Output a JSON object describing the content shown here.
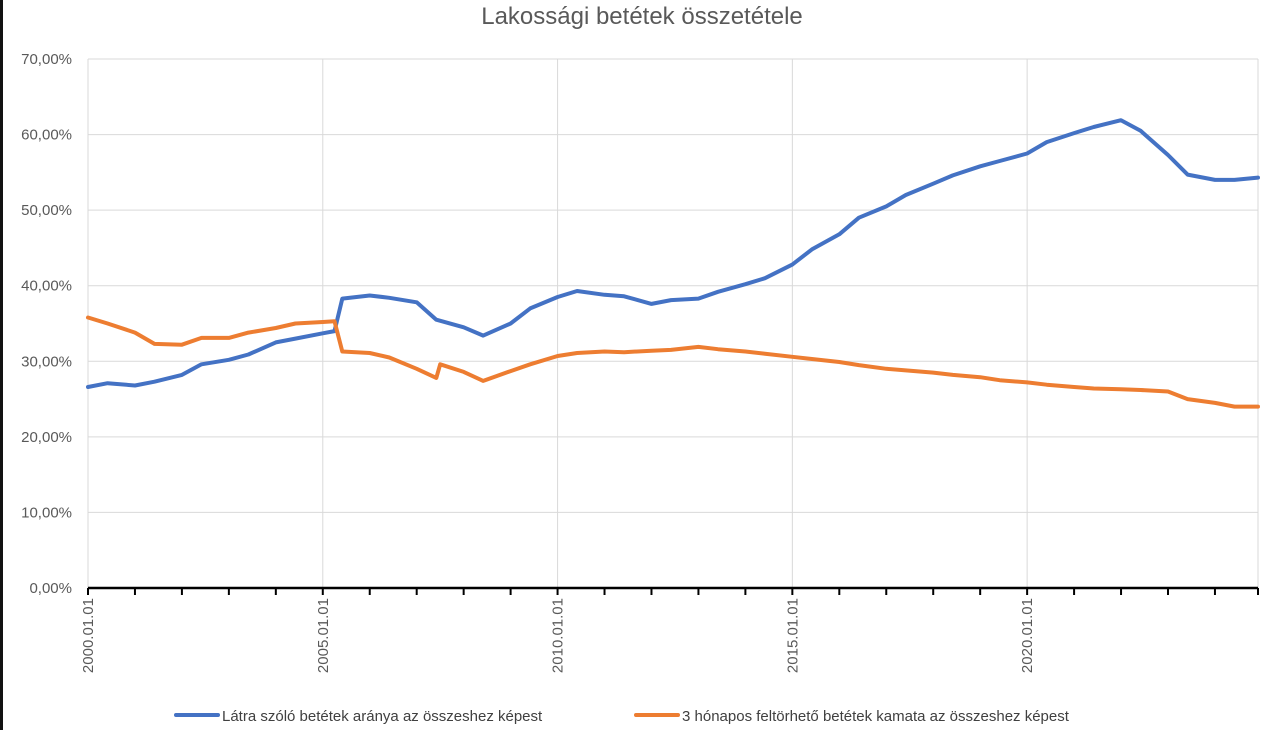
{
  "chart_data": {
    "type": "line",
    "title": "Lakossági betétek összetétele",
    "xlabel": "",
    "ylabel": "",
    "x_range": [
      "2000.01.01",
      "2024.12.01"
    ],
    "ylim": [
      0,
      70
    ],
    "y_ticks": [
      "0,00%",
      "10,00%",
      "20,00%",
      "30,00%",
      "40,00%",
      "50,00%",
      "60,00%",
      "70,00%"
    ],
    "x_ticks": [
      "2000.01.01",
      "2005.01.01",
      "2010.01.01",
      "2015.01.01",
      "2020.01.01"
    ],
    "grid": true,
    "legend_position": "bottom",
    "series": [
      {
        "name": "Látra szóló betétek aránya az összeshez képest",
        "color": "#4472C4",
        "points": [
          [
            "2000.01",
            26.6
          ],
          [
            "2000.06",
            27.1
          ],
          [
            "2001.01",
            26.8
          ],
          [
            "2001.06",
            27.3
          ],
          [
            "2002.01",
            28.2
          ],
          [
            "2002.06",
            29.6
          ],
          [
            "2003.01",
            30.2
          ],
          [
            "2003.06",
            30.9
          ],
          [
            "2004.01",
            32.5
          ],
          [
            "2004.06",
            33.0
          ],
          [
            "2005.01",
            33.7
          ],
          [
            "2005.04",
            34.0
          ],
          [
            "2005.06",
            38.3
          ],
          [
            "2006.01",
            38.7
          ],
          [
            "2006.06",
            38.4
          ],
          [
            "2007.01",
            37.8
          ],
          [
            "2007.06",
            35.5
          ],
          [
            "2008.01",
            34.5
          ],
          [
            "2008.06",
            33.4
          ],
          [
            "2009.01",
            35.0
          ],
          [
            "2009.06",
            37.0
          ],
          [
            "2010.01",
            38.5
          ],
          [
            "2010.06",
            39.3
          ],
          [
            "2011.01",
            38.8
          ],
          [
            "2011.06",
            38.6
          ],
          [
            "2012.01",
            37.6
          ],
          [
            "2012.06",
            38.1
          ],
          [
            "2013.01",
            38.3
          ],
          [
            "2013.06",
            39.2
          ],
          [
            "2014.01",
            40.2
          ],
          [
            "2014.06",
            41.0
          ],
          [
            "2015.01",
            42.8
          ],
          [
            "2015.06",
            44.8
          ],
          [
            "2016.01",
            46.8
          ],
          [
            "2016.06",
            49.0
          ],
          [
            "2017.01",
            50.5
          ],
          [
            "2017.06",
            52.0
          ],
          [
            "2018.01",
            53.5
          ],
          [
            "2018.06",
            54.6
          ],
          [
            "2019.01",
            55.8
          ],
          [
            "2019.06",
            56.5
          ],
          [
            "2020.01",
            57.5
          ],
          [
            "2020.06",
            59.0
          ],
          [
            "2021.01",
            60.2
          ],
          [
            "2021.06",
            61.0
          ],
          [
            "2022.01",
            61.9
          ],
          [
            "2022.06",
            60.5
          ],
          [
            "2023.01",
            57.3
          ],
          [
            "2023.06",
            54.7
          ],
          [
            "2024.01",
            54.0
          ],
          [
            "2024.06",
            54.0
          ],
          [
            "2024.12",
            54.3
          ]
        ]
      },
      {
        "name": "3 hónapos feltörhető betétek kamata az összeshez képest",
        "color": "#ED7D31",
        "points": [
          [
            "2000.01",
            35.8
          ],
          [
            "2000.06",
            35.0
          ],
          [
            "2001.01",
            33.8
          ],
          [
            "2001.06",
            32.3
          ],
          [
            "2002.01",
            32.2
          ],
          [
            "2002.06",
            33.1
          ],
          [
            "2003.01",
            33.1
          ],
          [
            "2003.06",
            33.8
          ],
          [
            "2004.01",
            34.4
          ],
          [
            "2004.06",
            35.0
          ],
          [
            "2005.01",
            35.2
          ],
          [
            "2005.04",
            35.3
          ],
          [
            "2005.06",
            31.3
          ],
          [
            "2006.01",
            31.1
          ],
          [
            "2006.06",
            30.5
          ],
          [
            "2007.01",
            29.0
          ],
          [
            "2007.06",
            27.8
          ],
          [
            "2007.07",
            29.6
          ],
          [
            "2008.01",
            28.6
          ],
          [
            "2008.06",
            27.4
          ],
          [
            "2009.01",
            28.7
          ],
          [
            "2009.06",
            29.6
          ],
          [
            "2010.01",
            30.7
          ],
          [
            "2010.06",
            31.1
          ],
          [
            "2011.01",
            31.3
          ],
          [
            "2011.06",
            31.2
          ],
          [
            "2012.01",
            31.4
          ],
          [
            "2012.06",
            31.5
          ],
          [
            "2013.01",
            31.9
          ],
          [
            "2013.06",
            31.6
          ],
          [
            "2014.01",
            31.3
          ],
          [
            "2014.06",
            31.0
          ],
          [
            "2015.01",
            30.6
          ],
          [
            "2015.06",
            30.3
          ],
          [
            "2016.01",
            29.9
          ],
          [
            "2016.06",
            29.5
          ],
          [
            "2017.01",
            29.0
          ],
          [
            "2017.06",
            28.8
          ],
          [
            "2018.01",
            28.5
          ],
          [
            "2018.06",
            28.2
          ],
          [
            "2019.01",
            27.9
          ],
          [
            "2019.06",
            27.5
          ],
          [
            "2020.01",
            27.2
          ],
          [
            "2020.06",
            26.9
          ],
          [
            "2021.01",
            26.6
          ],
          [
            "2021.06",
            26.4
          ],
          [
            "2022.01",
            26.3
          ],
          [
            "2022.06",
            26.2
          ],
          [
            "2023.01",
            26.0
          ],
          [
            "2023.06",
            25.0
          ],
          [
            "2024.01",
            24.5
          ],
          [
            "2024.06",
            24.0
          ],
          [
            "2024.12",
            24.0
          ]
        ]
      }
    ]
  }
}
